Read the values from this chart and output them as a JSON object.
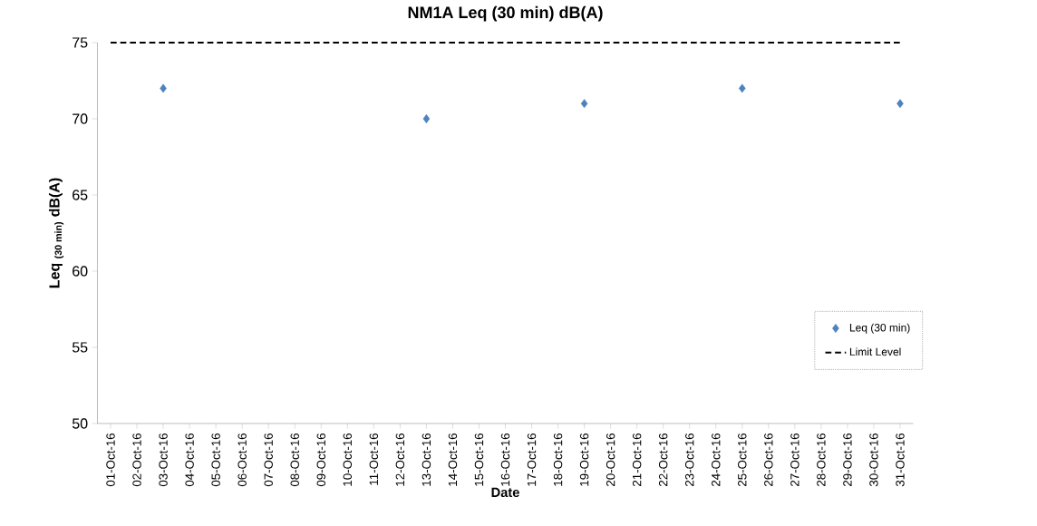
{
  "chart_data": {
    "type": "scatter",
    "title": "NM1A Leq (30 min) dB(A)",
    "xlabel": "Date",
    "ylabel": "Leq $_{(30 min)}$ dB(A)",
    "categories": [
      "01-Oct-16",
      "02-Oct-16",
      "03-Oct-16",
      "04-Oct-16",
      "05-Oct-16",
      "06-Oct-16",
      "07-Oct-16",
      "08-Oct-16",
      "09-Oct-16",
      "10-Oct-16",
      "11-Oct-16",
      "12-Oct-16",
      "13-Oct-16",
      "14-Oct-16",
      "15-Oct-16",
      "16-Oct-16",
      "17-Oct-16",
      "18-Oct-16",
      "19-Oct-16",
      "20-Oct-16",
      "21-Oct-16",
      "22-Oct-16",
      "23-Oct-16",
      "24-Oct-16",
      "25-Oct-16",
      "26-Oct-16",
      "27-Oct-16",
      "28-Oct-16",
      "29-Oct-16",
      "30-Oct-16",
      "31-Oct-16"
    ],
    "series": [
      {
        "name": "Leq (30 min)",
        "color": "#4f81bd",
        "values": [
          null,
          null,
          72,
          null,
          null,
          null,
          null,
          null,
          null,
          null,
          null,
          null,
          70,
          null,
          null,
          null,
          null,
          null,
          71,
          null,
          null,
          null,
          null,
          null,
          72,
          null,
          null,
          null,
          null,
          null,
          71
        ]
      }
    ],
    "ref_lines": [
      {
        "axis": "y",
        "value": 75,
        "label": "Limit Level",
        "color": "#000000",
        "line_style": "dashed"
      }
    ],
    "ylim": [
      50,
      75
    ],
    "yticks": [
      50,
      55,
      60,
      65,
      70,
      75
    ],
    "marker": "diamond",
    "legend": "right",
    "grid": false
  }
}
